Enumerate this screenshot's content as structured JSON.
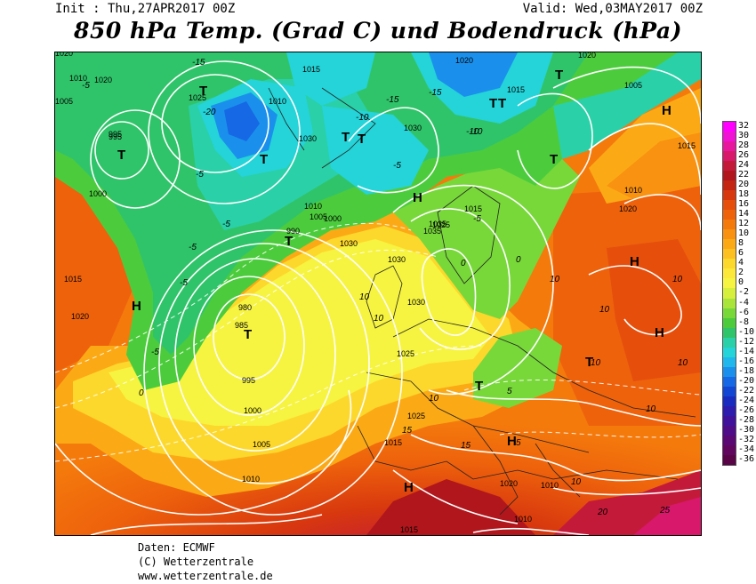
{
  "header": {
    "init": "Init : Thu,27APR2017 00Z",
    "valid": "Valid: Wed,03MAY2017 00Z",
    "title": "850 hPa Temp. (Grad C) und Bodendruck (hPa)"
  },
  "legend": {
    "ticks": [
      "32",
      "30",
      "28",
      "26",
      "24",
      "22",
      "20",
      "18",
      "16",
      "14",
      "12",
      "10",
      "8",
      "6",
      "4",
      "2",
      "0",
      "-2",
      "-4",
      "-6",
      "-8",
      "-10",
      "-12",
      "-14",
      "-16",
      "-18",
      "-20",
      "-22",
      "-24",
      "-26",
      "-28",
      "-30",
      "-32",
      "-34",
      "-36"
    ],
    "colors": [
      "#ff00ff",
      "#f013d4",
      "#e8189e",
      "#d8186a",
      "#c41a3a",
      "#b0161c",
      "#c42412",
      "#d8380e",
      "#e64e0c",
      "#ee620c",
      "#f47a0c",
      "#f89210",
      "#fbaa16",
      "#fcc020",
      "#fdd82c",
      "#fbe838",
      "#f6f440",
      "#d6ee3c",
      "#a8e43a",
      "#78d83a",
      "#4ccc3c",
      "#30c46a",
      "#2ad0a8",
      "#24d4d8",
      "#20b8ec",
      "#1a90ec",
      "#1668e4",
      "#1446d4",
      "#1a2cc0",
      "#2e1cae",
      "#40129c",
      "#4e0c88",
      "#5a0874",
      "#60065e",
      "#5a0448"
    ]
  },
  "map": {
    "pressure_labels": [
      {
        "text": "1020"
      },
      {
        "text": "1010"
      },
      {
        "text": "1005"
      },
      {
        "text": "1000"
      },
      {
        "text": "995"
      },
      {
        "text": "990"
      },
      {
        "text": "985"
      },
      {
        "text": "980"
      },
      {
        "text": "995"
      },
      {
        "text": "1000"
      },
      {
        "text": "1005"
      },
      {
        "text": "1010"
      },
      {
        "text": "1015"
      },
      {
        "text": "1020"
      },
      {
        "text": "1025"
      },
      {
        "text": "1030"
      },
      {
        "text": "1035"
      },
      {
        "text": "1030"
      },
      {
        "text": "1025"
      },
      {
        "text": "1020"
      },
      {
        "text": "1015"
      },
      {
        "text": "1010"
      },
      {
        "text": "1015"
      },
      {
        "text": "1020"
      },
      {
        "text": "1025"
      },
      {
        "text": "1030"
      },
      {
        "text": "1010"
      },
      {
        "text": "1005"
      },
      {
        "text": "1000"
      },
      {
        "text": "995"
      },
      {
        "text": "1020"
      },
      {
        "text": "1015"
      },
      {
        "text": "1030"
      },
      {
        "text": "1035"
      },
      {
        "text": "1030"
      },
      {
        "text": "1025"
      },
      {
        "text": "1020"
      },
      {
        "text": "1015"
      },
      {
        "text": "1010"
      },
      {
        "text": "1015"
      },
      {
        "text": "1010"
      },
      {
        "text": "1005"
      },
      {
        "text": "1010"
      },
      {
        "text": "1015"
      },
      {
        "text": "1020"
      }
    ],
    "temp_labels": [
      {
        "text": "-15"
      },
      {
        "text": "-5"
      },
      {
        "text": "-20"
      },
      {
        "text": "-10"
      },
      {
        "text": "-15"
      },
      {
        "text": "-15"
      },
      {
        "text": "-10"
      },
      {
        "text": "-5"
      },
      {
        "text": "-5"
      },
      {
        "text": "-5"
      },
      {
        "text": "-5"
      },
      {
        "text": "-5"
      },
      {
        "text": "-5"
      },
      {
        "text": "0"
      },
      {
        "text": "0"
      },
      {
        "text": "0"
      },
      {
        "text": "5"
      },
      {
        "text": "5"
      },
      {
        "text": "10"
      },
      {
        "text": "10"
      },
      {
        "text": "10"
      },
      {
        "text": "10"
      },
      {
        "text": "10"
      },
      {
        "text": "10"
      },
      {
        "text": "10"
      },
      {
        "text": "15"
      },
      {
        "text": "15"
      },
      {
        "text": "20"
      },
      {
        "text": "25"
      },
      {
        "text": "10"
      },
      {
        "text": "10"
      },
      {
        "text": "10"
      },
      {
        "text": "-5"
      },
      {
        "text": "-10"
      }
    ],
    "centers": [
      {
        "text": "T"
      },
      {
        "text": "T"
      },
      {
        "text": "T"
      },
      {
        "text": "T"
      },
      {
        "text": "T"
      },
      {
        "text": "T"
      },
      {
        "text": "T"
      },
      {
        "text": "T"
      },
      {
        "text": "T"
      },
      {
        "text": "T"
      },
      {
        "text": "T"
      },
      {
        "text": "T"
      },
      {
        "text": "T"
      },
      {
        "text": "H"
      },
      {
        "text": "H"
      },
      {
        "text": "H"
      },
      {
        "text": "H"
      },
      {
        "text": "H"
      },
      {
        "text": "H"
      },
      {
        "text": "H"
      }
    ]
  },
  "credits": {
    "source": "Daten: ECMWF",
    "copyright": "(C) Wetterzentrale",
    "url": "www.wetterzentrale.de"
  }
}
